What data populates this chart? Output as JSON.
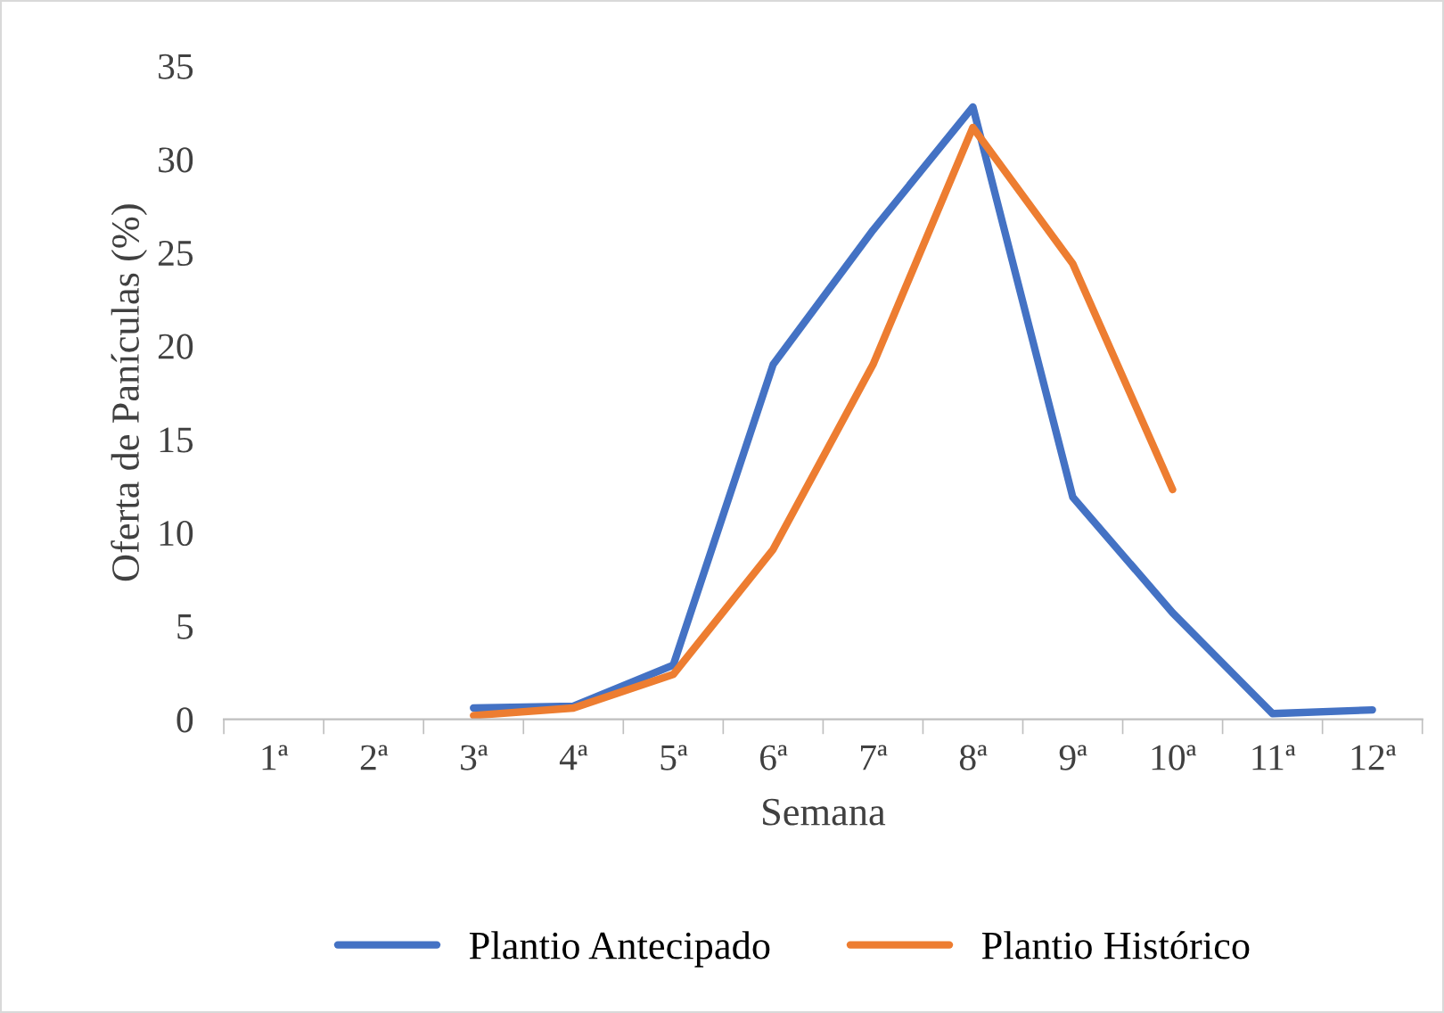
{
  "chart_data": {
    "type": "line",
    "xlabel": "Semana",
    "ylabel": "Oferta de Panículas (%)",
    "categories": [
      "1ª",
      "2ª",
      "3ª",
      "4ª",
      "5ª",
      "6ª",
      "7ª",
      "8ª",
      "9ª",
      "10ª",
      "11ª",
      "12ª"
    ],
    "series": [
      {
        "name": "Plantio Antecipado",
        "color": "#4472c4",
        "values": [
          null,
          null,
          0.6,
          0.7,
          2.9,
          19,
          26.2,
          32.8,
          11.9,
          5.7,
          0.3,
          0.5
        ]
      },
      {
        "name": "Plantio Histórico",
        "color": "#ed7d31",
        "values": [
          null,
          null,
          0.2,
          0.6,
          2.4,
          9.1,
          19,
          31.7,
          24.4,
          12.3,
          null,
          null
        ]
      }
    ],
    "ylim": [
      0,
      35
    ],
    "yticks": [
      0,
      5,
      10,
      15,
      20,
      25,
      30,
      35
    ],
    "grid": false,
    "legend": "bottom",
    "marker": "none",
    "line_style": "solid"
  }
}
